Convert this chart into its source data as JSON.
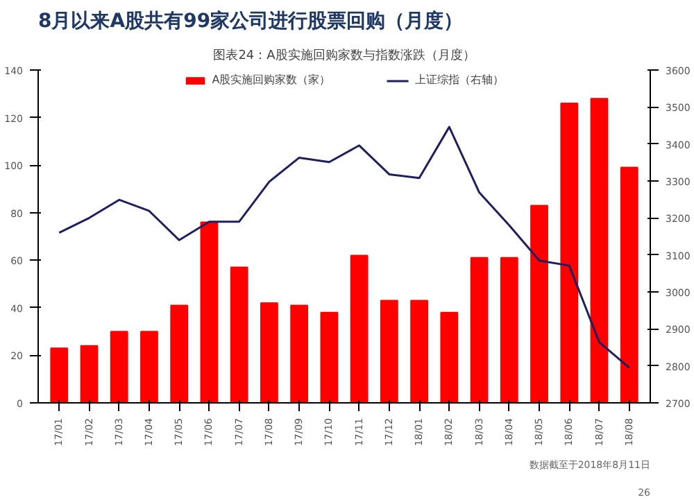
{
  "chart_data": {
    "type": "bar",
    "title": "8月以来A股共有99家公司进行股票回购（月度）",
    "subtitle": "图表24：A股实施回购家数与指数涨跌（月度）",
    "categories": [
      "17/01",
      "17/02",
      "17/03",
      "17/04",
      "17/05",
      "17/06",
      "17/07",
      "17/08",
      "17/09",
      "17/10",
      "17/11",
      "17/12",
      "18/01",
      "18/02",
      "18/03",
      "18/04",
      "18/05",
      "18/06",
      "18/07",
      "18/08"
    ],
    "series": [
      {
        "name": "A股实施回购家数（家）",
        "color": "#ff0000",
        "values": [
          23,
          24,
          30,
          30,
          41,
          76,
          57,
          42,
          41,
          38,
          62,
          43,
          43,
          38,
          61,
          61,
          83,
          126,
          128,
          99
        ]
      },
      {
        "name": "上证综指（右轴）",
        "color": "#1f1f5e",
        "type": "line",
        "axis": "y2",
        "values": [
          3160,
          3200,
          3249,
          3219,
          3140,
          3190,
          3190,
          3298,
          3363,
          3351,
          3396,
          3318,
          3308,
          3446,
          3269,
          3180,
          3085,
          3071,
          2864,
          2795
        ]
      }
    ],
    "ylim": [
      0,
      140
    ],
    "yticks": [
      0,
      20,
      40,
      60,
      80,
      100,
      120,
      140
    ],
    "y2lim": [
      2700,
      3600
    ],
    "y2ticks": [
      2700,
      2800,
      2900,
      3000,
      3100,
      3200,
      3300,
      3400,
      3500,
      3600
    ],
    "grid": false,
    "legend": "top",
    "annotations": [
      "数据截至于2018年8月11日",
      "26"
    ]
  }
}
